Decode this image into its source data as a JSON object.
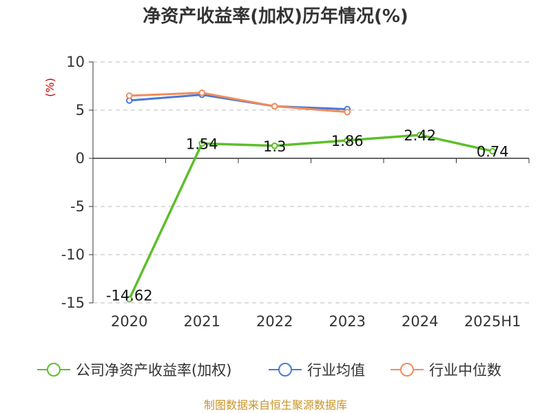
{
  "chart_data": {
    "type": "line",
    "title": "净资产收益率(加权)历年情况(%)",
    "ylabel": "(%)",
    "xlabel": "",
    "categories": [
      "2020",
      "2021",
      "2022",
      "2023",
      "2024",
      "2025H1"
    ],
    "ylim": [
      -15,
      10
    ],
    "yticks": [
      10,
      5,
      0,
      -5,
      -10,
      -15
    ],
    "grid": "horizontal dashed",
    "series": [
      {
        "name": "公司净资产收益率(加权)",
        "values": [
          -14.62,
          1.54,
          1.3,
          1.86,
          2.42,
          0.74
        ],
        "labels": [
          "-14.62",
          "1.54",
          "1.3",
          "1.86",
          "2.42",
          "0.74"
        ],
        "color": "#5cbf2a",
        "show_labels": true
      },
      {
        "name": "行业均值",
        "values": [
          6.0,
          6.6,
          5.4,
          5.1,
          null,
          null
        ],
        "color": "#4a78d8",
        "show_labels": false
      },
      {
        "name": "行业中位数",
        "values": [
          6.5,
          6.8,
          5.4,
          4.8,
          null,
          null
        ],
        "color": "#f28c5a",
        "show_labels": false
      }
    ],
    "legend_position": "bottom"
  },
  "footer": {
    "source": "制图数据来自恒生聚源数据库"
  }
}
